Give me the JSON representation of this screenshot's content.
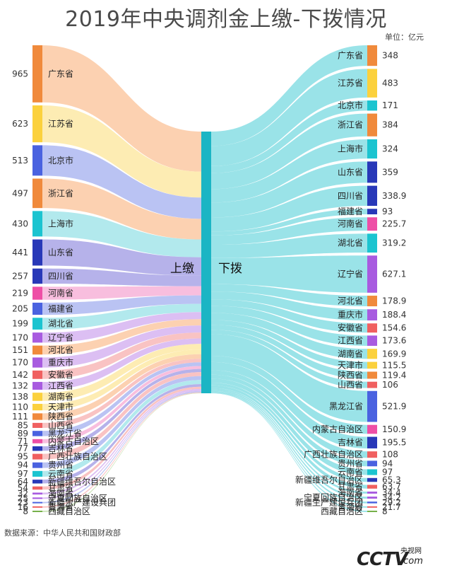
{
  "title": "2019年中央调剂金上缴-下拨情况",
  "unit": "单位：亿元",
  "source": "数据来源：中华人民共和国财政部",
  "logo": {
    "main": "CCTV",
    "cn": "央视网",
    "com": ".com"
  },
  "chart_data": {
    "type": "sankey",
    "center_left_label": "上缴",
    "center_right_label": "下拨",
    "center_color": "#1bb5c4",
    "left": [
      {
        "name": "广东省",
        "value": "965",
        "color": "#f08a3c",
        "band": "#fbc9a3"
      },
      {
        "name": "江苏省",
        "value": "623",
        "color": "#fbd13d",
        "band": "#fde9a6"
      },
      {
        "name": "北京市",
        "value": "513",
        "color": "#4a62e0",
        "band": "#aeb8f1"
      },
      {
        "name": "浙江省",
        "value": "497",
        "color": "#f08a3c",
        "band": "#fbc9a3"
      },
      {
        "name": "上海市",
        "value": "430",
        "color": "#1bc4d0",
        "band": "#a4e5ea"
      },
      {
        "name": "山东省",
        "value": "441",
        "color": "#2838b8",
        "band": "#a9a4e6"
      },
      {
        "name": "四川省",
        "value": "257",
        "color": "#2838b8",
        "band": "#a9a4e6"
      },
      {
        "name": "河南省",
        "value": "219",
        "color": "#ee4fa6",
        "band": "#f7b3d8"
      },
      {
        "name": "福建省",
        "value": "205",
        "color": "#4a62e0",
        "band": "#aeb8f1"
      },
      {
        "name": "湖北省",
        "value": "199",
        "color": "#1bc4d0",
        "band": "#a4e5ea"
      },
      {
        "name": "辽宁省",
        "value": "170",
        "color": "#a85be0",
        "band": "#d6b4f1"
      },
      {
        "name": "河北省",
        "value": "151",
        "color": "#f08a3c",
        "band": "#fbc9a3"
      },
      {
        "name": "重庆市",
        "value": "170",
        "color": "#a85be0",
        "band": "#d6b4f1"
      },
      {
        "name": "安徽省",
        "value": "142",
        "color": "#f06060",
        "band": "#f8b8b8"
      },
      {
        "name": "江西省",
        "value": "132",
        "color": "#a85be0",
        "band": "#d6b4f1"
      },
      {
        "name": "湖南省",
        "value": "138",
        "color": "#fbd13d",
        "band": "#fde9a6"
      },
      {
        "name": "天津市",
        "value": "110",
        "color": "#fbd13d",
        "band": "#fde9a6"
      },
      {
        "name": "陕西省",
        "value": "111",
        "color": "#f08a3c",
        "band": "#fbc9a3"
      },
      {
        "name": "山西省",
        "value": "85",
        "color": "#f06060",
        "band": "#f8b8b8"
      },
      {
        "name": "黑龙江省",
        "value": "89",
        "color": "#4a62e0",
        "band": "#aeb8f1"
      },
      {
        "name": "内蒙古自治区",
        "value": "71",
        "color": "#ee4fa6",
        "band": "#f7b3d8"
      },
      {
        "name": "吉林省",
        "value": "77",
        "color": "#2838b8",
        "band": "#a9a4e6"
      },
      {
        "name": "广西壮族自治区",
        "value": "95",
        "color": "#f06060",
        "band": "#f8b8b8"
      },
      {
        "name": "贵州省",
        "value": "94",
        "color": "#4a62e0",
        "band": "#aeb8f1"
      },
      {
        "name": "云南省",
        "value": "97",
        "color": "#1bc4d0",
        "band": "#a4e5ea"
      },
      {
        "name": "新疆维吾尔自治区",
        "value": "64",
        "color": "#2838b8",
        "band": "#a9a4e6"
      },
      {
        "name": "甘肃省",
        "value": "54",
        "color": "#f06060",
        "band": "#f8b8b8"
      },
      {
        "name": "海南省",
        "value": "32",
        "color": "#a85be0",
        "band": "#d6b4f1"
      },
      {
        "name": "宁夏回族自治区",
        "value": "25",
        "color": "#a85be0",
        "band": "#d6b4f1"
      },
      {
        "name": "新疆生产建设兵团",
        "value": "23",
        "color": "#4a62e0",
        "band": "#aeb8f1"
      },
      {
        "name": "青海省",
        "value": "16",
        "color": "#f06060",
        "band": "#f8b8b8"
      },
      {
        "name": "西藏自治区",
        "value": "8",
        "color": "#76b04a",
        "band": "#c6e0b0"
      }
    ],
    "right": [
      {
        "name": "广东省",
        "value": "348",
        "color": "#f08a3c"
      },
      {
        "name": "江苏省",
        "value": "483",
        "color": "#fbd13d"
      },
      {
        "name": "北京市",
        "value": "171",
        "color": "#1bc4d0"
      },
      {
        "name": "浙江省",
        "value": "384",
        "color": "#f08a3c"
      },
      {
        "name": "上海市",
        "value": "324",
        "color": "#1bc4d0"
      },
      {
        "name": "山东省",
        "value": "359",
        "color": "#2838b8"
      },
      {
        "name": "四川省",
        "value": "338.9",
        "color": "#2838b8"
      },
      {
        "name": "福建省",
        "value": "93",
        "color": "#2838b8"
      },
      {
        "name": "河南省",
        "value": "225.7",
        "color": "#ee4fa6"
      },
      {
        "name": "湖北省",
        "value": "319.2",
        "color": "#1bc4d0"
      },
      {
        "name": "辽宁省",
        "value": "627.1",
        "color": "#a85be0"
      },
      {
        "name": "河北省",
        "value": "178.9",
        "color": "#f08a3c"
      },
      {
        "name": "重庆市",
        "value": "188.4",
        "color": "#a85be0"
      },
      {
        "name": "安徽省",
        "value": "154.6",
        "color": "#f06060"
      },
      {
        "name": "江西省",
        "value": "173.6",
        "color": "#a85be0"
      },
      {
        "name": "湖南省",
        "value": "169.9",
        "color": "#fbd13d"
      },
      {
        "name": "天津市",
        "value": "115.5",
        "color": "#fbd13d"
      },
      {
        "name": "陕西省",
        "value": "119.4",
        "color": "#f08a3c"
      },
      {
        "name": "山西省",
        "value": "106",
        "color": "#f06060"
      },
      {
        "name": "黑龙江省",
        "value": "521.9",
        "color": "#4a62e0"
      },
      {
        "name": "内蒙古自治区",
        "value": "150.9",
        "color": "#ee4fa6"
      },
      {
        "name": "吉林省",
        "value": "195.5",
        "color": "#2838b8"
      },
      {
        "name": "广西壮族自治区",
        "value": "108",
        "color": "#f06060"
      },
      {
        "name": "贵州省",
        "value": "94",
        "color": "#4a62e0"
      },
      {
        "name": "云南省",
        "value": "97",
        "color": "#1bc4d0"
      },
      {
        "name": "新疆维吾尔自治区",
        "value": "65.3",
        "color": "#2838b8"
      },
      {
        "name": "甘肃省",
        "value": "63.7",
        "color": "#f06060"
      },
      {
        "name": "海南省",
        "value": "34.4",
        "color": "#a85be0"
      },
      {
        "name": "宁夏回族自治区",
        "value": "34.2",
        "color": "#a85be0"
      },
      {
        "name": "新疆生产建设兵团",
        "value": "29.2",
        "color": "#4a62e0"
      },
      {
        "name": "青海省",
        "value": "21.7",
        "color": "#f06060"
      },
      {
        "name": "西藏自治区",
        "value": "8",
        "color": "#76b04a"
      }
    ]
  }
}
